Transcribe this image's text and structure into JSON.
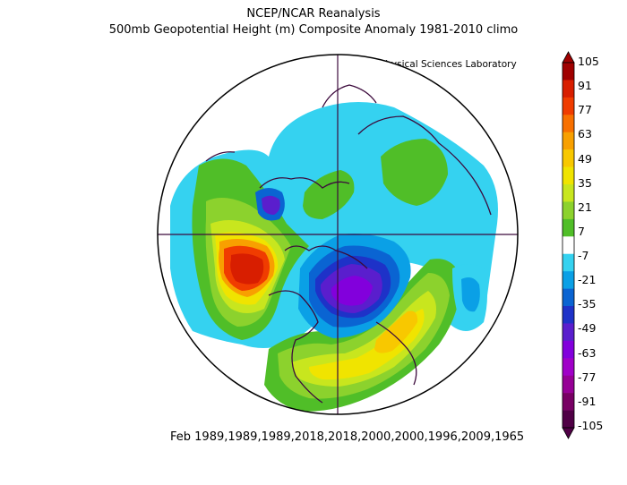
{
  "title": "NCEP/NCAR Reanalysis",
  "subtitle": "500mb Geopotential Height (m) Composite Anomaly 1981-2010 climo",
  "credit": "NOAA Physical Sciences Laboratory",
  "footer": "Feb 1989,1989,1989,2018,2018,2000,2000,1996,2009,1965",
  "colorbar": {
    "labels": [
      "105",
      "91",
      "77",
      "63",
      "49",
      "35",
      "21",
      "7",
      "-7",
      "-21",
      "-35",
      "-49",
      "-63",
      "-77",
      "-91",
      "-105"
    ],
    "colors": [
      "#a00000",
      "#d81e00",
      "#f03c00",
      "#f87000",
      "#f8a000",
      "#f8c800",
      "#f0e400",
      "#c8e61e",
      "#8cd22d",
      "#50be28",
      "#ffffff",
      "#35d2f0",
      "#0aa0e6",
      "#0a64d2",
      "#1e32c8",
      "#5a1ecd",
      "#8200dc",
      "#a000c8",
      "#960096",
      "#780064",
      "#500046"
    ]
  }
}
